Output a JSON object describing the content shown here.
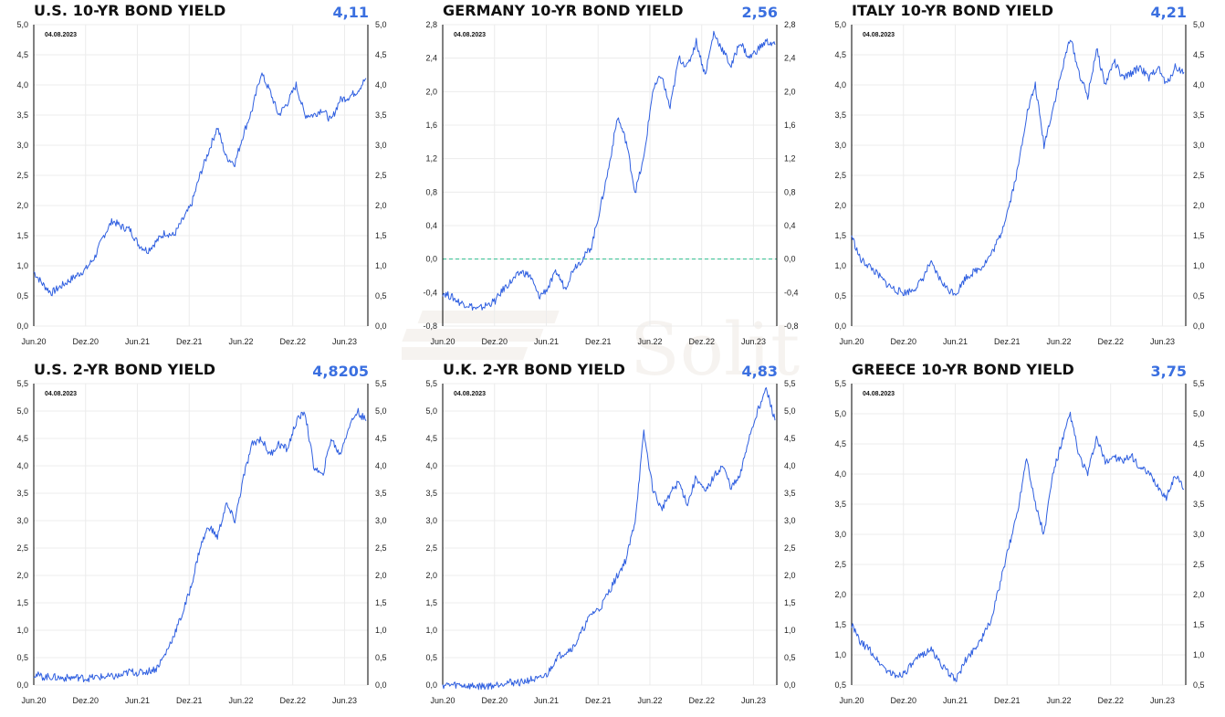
{
  "page": {
    "date_stamp": "04.08.2023",
    "watermark": "Solit"
  },
  "colors": {
    "series": "#2f5fe0",
    "value": "#3a6fe0",
    "zero_line": "#2ebf8f",
    "grid": "#ececec"
  },
  "chart_data": [
    {
      "type": "line",
      "title": "U.S. 10-YR BOND YIELD",
      "last_value": "4,11",
      "date_label": "04.08.2023",
      "xticks": [
        "Jun.20",
        "Dez.20",
        "Jun.21",
        "Dez.21",
        "Jun.22",
        "Dez.22",
        "Jun.23"
      ],
      "yticks": [
        "0,0",
        "0,5",
        "1,0",
        "1,5",
        "2,0",
        "2,5",
        "3,0",
        "3,5",
        "4,0",
        "4,5",
        "5,0"
      ],
      "ylim": [
        0,
        5
      ],
      "grid": true,
      "series": [
        {
          "x": [
            0,
            1,
            2,
            3,
            4,
            5,
            6,
            7,
            8,
            9,
            10,
            11,
            12,
            13,
            14,
            15,
            16,
            17,
            18,
            19,
            20,
            21,
            22,
            23,
            24,
            25,
            26,
            27,
            28,
            29,
            30,
            31,
            32,
            33,
            34,
            35,
            36,
            37,
            38
          ],
          "y": [
            0.9,
            0.7,
            0.55,
            0.65,
            0.75,
            0.85,
            0.95,
            1.15,
            1.5,
            1.75,
            1.65,
            1.6,
            1.35,
            1.25,
            1.4,
            1.55,
            1.5,
            1.75,
            2.0,
            2.5,
            2.9,
            3.3,
            2.8,
            2.7,
            3.2,
            3.6,
            4.2,
            3.9,
            3.5,
            3.7,
            4.0,
            3.5,
            3.5,
            3.6,
            3.4,
            3.75,
            3.8,
            3.9,
            4.11
          ]
        }
      ]
    },
    {
      "type": "line",
      "title": "GERMANY 10-YR BOND YIELD",
      "last_value": "2,56",
      "date_label": "04.08.2023",
      "xticks": [
        "Jun.20",
        "Dez.20",
        "Jun.21",
        "Dez.21",
        "Jun.22",
        "Dez.22",
        "Jun.23"
      ],
      "yticks": [
        "-0,8",
        "-0,4",
        "0,0",
        "0,4",
        "0,8",
        "1,2",
        "1,6",
        "2,0",
        "2,4",
        "2,8"
      ],
      "ylim": [
        -0.8,
        2.8
      ],
      "grid": true,
      "reference_line": 0,
      "series": [
        {
          "x": [
            0,
            1,
            2,
            3,
            4,
            5,
            6,
            7,
            8,
            9,
            10,
            11,
            12,
            13,
            14,
            15,
            16,
            17,
            18,
            19,
            20,
            21,
            22,
            23,
            24,
            25,
            26,
            27,
            28,
            29,
            30,
            31,
            32,
            33,
            34,
            35,
            36,
            37,
            38
          ],
          "y": [
            -0.4,
            -0.45,
            -0.52,
            -0.55,
            -0.6,
            -0.55,
            -0.5,
            -0.35,
            -0.25,
            -0.15,
            -0.2,
            -0.45,
            -0.35,
            -0.15,
            -0.35,
            -0.1,
            0.0,
            0.15,
            0.6,
            1.1,
            1.7,
            1.4,
            0.8,
            1.2,
            2.0,
            2.2,
            1.8,
            2.4,
            2.3,
            2.6,
            2.2,
            2.7,
            2.5,
            2.3,
            2.6,
            2.4,
            2.5,
            2.6,
            2.56
          ]
        }
      ]
    },
    {
      "type": "line",
      "title": "ITALY 10-YR BOND YIELD",
      "last_value": "4,21",
      "date_label": "04.08.2023",
      "xticks": [
        "Jun.20",
        "Dez.20",
        "Jun.21",
        "Dez.21",
        "Jun.22",
        "Dez.22",
        "Jun.23"
      ],
      "yticks": [
        "0,0",
        "0,5",
        "1,0",
        "1,5",
        "2,0",
        "2,5",
        "3,0",
        "3,5",
        "4,0",
        "4,5",
        "5,0"
      ],
      "ylim": [
        0,
        5
      ],
      "grid": true,
      "series": [
        {
          "x": [
            0,
            1,
            2,
            3,
            4,
            5,
            6,
            7,
            8,
            9,
            10,
            11,
            12,
            13,
            14,
            15,
            16,
            17,
            18,
            19,
            20,
            21,
            22,
            23,
            24,
            25,
            26,
            27,
            28,
            29,
            30,
            31,
            32,
            33,
            34,
            35,
            36,
            37,
            38
          ],
          "y": [
            1.5,
            1.1,
            1.0,
            0.85,
            0.7,
            0.6,
            0.55,
            0.6,
            0.75,
            1.05,
            0.8,
            0.6,
            0.55,
            0.8,
            0.9,
            1.0,
            1.2,
            1.5,
            2.0,
            2.6,
            3.5,
            4.0,
            3.0,
            3.6,
            4.2,
            4.8,
            4.2,
            3.8,
            4.6,
            4.0,
            4.4,
            4.1,
            4.2,
            4.3,
            4.1,
            4.3,
            4.0,
            4.3,
            4.21
          ]
        }
      ]
    },
    {
      "type": "line",
      "title": "U.S. 2-YR BOND YIELD",
      "last_value": "4,8205",
      "date_label": "04.08.2023",
      "xticks": [
        "Jun.20",
        "Dez.20",
        "Jun.21",
        "Dez.21",
        "Jun.22",
        "Dez.22",
        "Jun.23"
      ],
      "yticks": [
        "0,0",
        "0,5",
        "1,0",
        "1,5",
        "2,0",
        "2,5",
        "3,0",
        "3,5",
        "4,0",
        "4,5",
        "5,0",
        "5,5"
      ],
      "ylim": [
        0,
        5.5
      ],
      "grid": true,
      "series": [
        {
          "x": [
            0,
            1,
            2,
            3,
            4,
            5,
            6,
            7,
            8,
            9,
            10,
            11,
            12,
            13,
            14,
            15,
            16,
            17,
            18,
            19,
            20,
            21,
            22,
            23,
            24,
            25,
            26,
            27,
            28,
            29,
            30,
            31,
            32,
            33,
            34,
            35,
            36,
            37,
            38
          ],
          "y": [
            0.2,
            0.15,
            0.15,
            0.13,
            0.13,
            0.14,
            0.12,
            0.14,
            0.15,
            0.15,
            0.17,
            0.25,
            0.22,
            0.25,
            0.3,
            0.55,
            0.9,
            1.3,
            1.8,
            2.5,
            2.9,
            2.7,
            3.3,
            3.0,
            3.8,
            4.4,
            4.5,
            4.2,
            4.4,
            4.3,
            4.8,
            5.0,
            4.0,
            3.8,
            4.5,
            4.2,
            4.7,
            5.0,
            4.82
          ]
        }
      ]
    },
    {
      "type": "line",
      "title": "U.K. 2-YR BOND YIELD",
      "last_value": "4,83",
      "date_label": "04.08.2023",
      "xticks": [
        "Jun.20",
        "Dez.20",
        "Jun.21",
        "Dez.21",
        "Jun.22",
        "Dez.22",
        "Jun.23"
      ],
      "yticks": [
        "0,0",
        "0,5",
        "1,0",
        "1,5",
        "2,0",
        "2,5",
        "3,0",
        "3,5",
        "4,0",
        "4,5",
        "5,0",
        "5,5"
      ],
      "ylim": [
        0,
        5.5
      ],
      "grid": true,
      "series": [
        {
          "x": [
            0,
            1,
            2,
            3,
            4,
            5,
            6,
            7,
            8,
            9,
            10,
            11,
            12,
            13,
            14,
            15,
            16,
            17,
            18,
            19,
            20,
            21,
            22,
            23,
            24,
            25,
            26,
            27,
            28,
            29,
            30,
            31,
            32,
            33,
            34,
            35,
            36,
            37,
            38
          ],
          "y": [
            0.0,
            0.0,
            0.0,
            -0.02,
            -0.02,
            -0.02,
            0.0,
            0.05,
            0.05,
            0.05,
            0.1,
            0.1,
            0.2,
            0.5,
            0.6,
            0.7,
            1.0,
            1.3,
            1.4,
            1.7,
            2.0,
            2.3,
            3.0,
            4.6,
            3.6,
            3.2,
            3.5,
            3.7,
            3.3,
            3.8,
            3.5,
            3.8,
            4.0,
            3.6,
            3.8,
            4.5,
            5.0,
            5.4,
            4.83
          ]
        }
      ]
    },
    {
      "type": "line",
      "title": "GREECE 10-YR BOND YIELD",
      "last_value": "3,75",
      "date_label": "04.08.2023",
      "xticks": [
        "Jun.20",
        "Dez.20",
        "Jun.21",
        "Dez.21",
        "Jun.22",
        "Dez.22",
        "Jun.23"
      ],
      "yticks": [
        "0,5",
        "1,0",
        "1,5",
        "2,0",
        "2,5",
        "3,0",
        "3,5",
        "4,0",
        "4,5",
        "5,0",
        "5,5"
      ],
      "ylim": [
        0.5,
        5.5
      ],
      "grid": true,
      "series": [
        {
          "x": [
            0,
            1,
            2,
            3,
            4,
            5,
            6,
            7,
            8,
            9,
            10,
            11,
            12,
            13,
            14,
            15,
            16,
            17,
            18,
            19,
            20,
            21,
            22,
            23,
            24,
            25,
            26,
            27,
            28,
            29,
            30,
            31,
            32,
            33,
            34,
            35,
            36,
            37,
            38
          ],
          "y": [
            1.5,
            1.2,
            1.1,
            0.9,
            0.75,
            0.65,
            0.7,
            0.85,
            1.0,
            1.1,
            0.9,
            0.7,
            0.6,
            0.9,
            1.1,
            1.3,
            1.6,
            2.2,
            2.8,
            3.4,
            4.3,
            3.5,
            3.0,
            4.0,
            4.5,
            5.0,
            4.3,
            4.0,
            4.6,
            4.2,
            4.3,
            4.2,
            4.3,
            4.1,
            4.0,
            3.8,
            3.6,
            4.0,
            3.75
          ]
        }
      ]
    }
  ]
}
